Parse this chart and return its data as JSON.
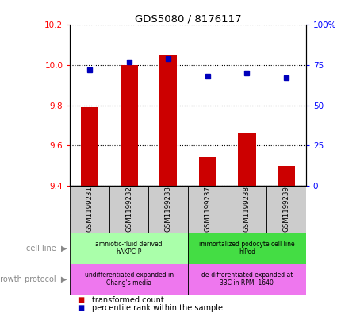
{
  "title": "GDS5080 / 8176117",
  "samples": [
    "GSM1199231",
    "GSM1199232",
    "GSM1199233",
    "GSM1199237",
    "GSM1199238",
    "GSM1199239"
  ],
  "transformed_counts": [
    9.79,
    10.0,
    10.05,
    9.54,
    9.66,
    9.5
  ],
  "percentile_ranks": [
    72,
    77,
    79,
    68,
    70,
    67
  ],
  "ylim_left": [
    9.4,
    10.2
  ],
  "ylim_right": [
    0,
    100
  ],
  "yticks_left": [
    9.4,
    9.6,
    9.8,
    10.0,
    10.2
  ],
  "yticks_right": [
    0,
    25,
    50,
    75,
    100
  ],
  "ytick_labels_right": [
    "0",
    "25",
    "50",
    "75",
    "100%"
  ],
  "cell_line_groups": [
    {
      "label": "amniotic-fluid derived\nhAKPC-P",
      "start": 0,
      "end": 3,
      "color": "#AAFFAA"
    },
    {
      "label": "immortalized podocyte cell line\nhIPod",
      "start": 3,
      "end": 6,
      "color": "#44DD44"
    }
  ],
  "growth_protocol_groups": [
    {
      "label": "undifferentiated expanded in\nChang's media",
      "start": 0,
      "end": 3,
      "color": "#EE77EE"
    },
    {
      "label": "de-differentiated expanded at\n33C in RPMI-1640",
      "start": 3,
      "end": 6,
      "color": "#EE77EE"
    }
  ],
  "bar_color": "#CC0000",
  "dot_color": "#0000BB",
  "background_color": "#FFFFFF",
  "label_area_color": "#CCCCCC",
  "left_label_color": "#888888",
  "cell_line_label1_color": "#008800",
  "cell_line_label2_color": "#008800"
}
